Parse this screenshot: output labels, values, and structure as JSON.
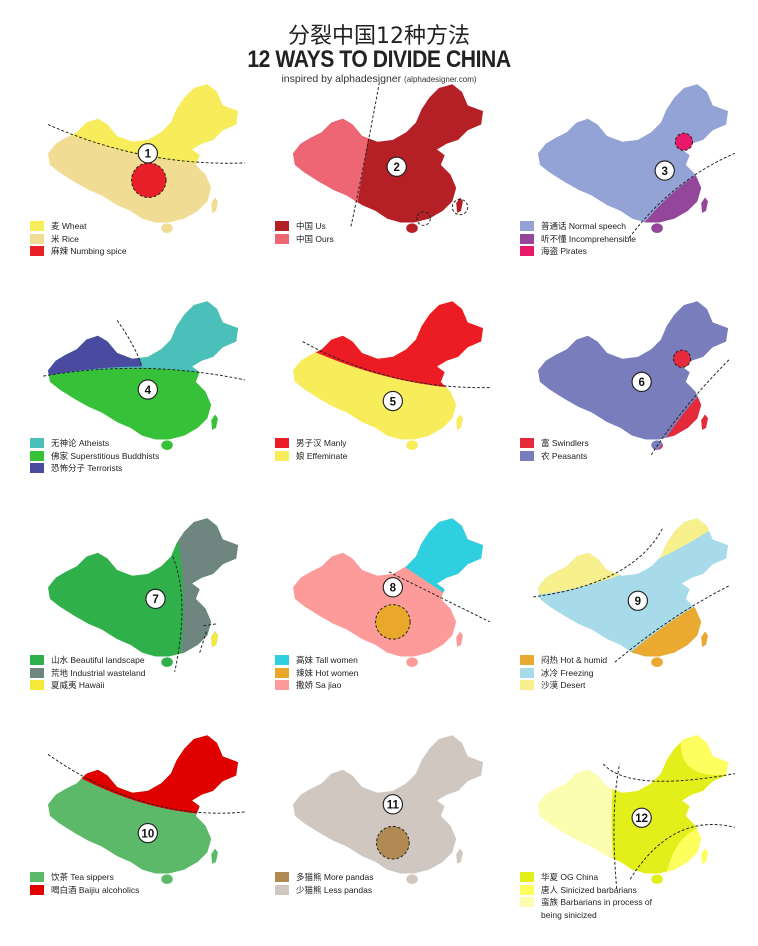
{
  "title_cn": "分裂中国12种方法",
  "title_en": "12 WAYS TO DIVIDE CHINA",
  "subtitle": "inspired by alphadesigner",
  "subtitle_small": "(alphadesigner.com)",
  "panels": [
    {
      "number": "1",
      "base": "#f0dc92",
      "legend": [
        {
          "label": "麦 Wheat",
          "color": "#f7ec5a"
        },
        {
          "label": "米 Rice",
          "color": "#f0dc92"
        },
        {
          "label": "麻辣 Numbing spice",
          "color": "#ea2028"
        }
      ]
    },
    {
      "number": "2",
      "base": "#b51f26",
      "legend": [
        {
          "label": "中国 Us",
          "color": "#b51f26"
        },
        {
          "label": "中国 Ours",
          "color": "#ee6574"
        }
      ]
    },
    {
      "number": "3",
      "base": "#94a3d5",
      "legend": [
        {
          "label": "普通话 Normal speech",
          "color": "#94a3d5"
        },
        {
          "label": "听不懂 Incomprehensible",
          "color": "#94479a"
        },
        {
          "label": "海盗 Pirates",
          "color": "#e8196a"
        }
      ]
    },
    {
      "number": "4",
      "base": "#36c139",
      "legend": [
        {
          "label": "无神论 Atheists",
          "color": "#4bbfba"
        },
        {
          "label": "佛家 Superstitious Buddhists",
          "color": "#36c139"
        },
        {
          "label": "恐怖分子 Terrorists",
          "color": "#4a4ba0"
        }
      ]
    },
    {
      "number": "5",
      "base": "#f7ec5a",
      "legend": [
        {
          "label": "男子汉 Manly",
          "color": "#ec1c24"
        },
        {
          "label": "娘 Effeminate",
          "color": "#f7ec5a"
        }
      ]
    },
    {
      "number": "6",
      "base": "#7a7dbb",
      "legend": [
        {
          "label": "富 Swindlers",
          "color": "#e52a3b"
        },
        {
          "label": "农 Peasants",
          "color": "#7a7dbb"
        }
      ]
    },
    {
      "number": "7",
      "base": "#30b04a",
      "legend": [
        {
          "label": "山水 Beautiful landscape",
          "color": "#30b04a"
        },
        {
          "label": "荒地 Industrial wasteland",
          "color": "#6f8580"
        },
        {
          "label": "夏威夷 Hawaii",
          "color": "#f5e93a"
        }
      ]
    },
    {
      "number": "8",
      "base": "#fd9b9b",
      "legend": [
        {
          "label": "高妹 Tall women",
          "color": "#2ed0e0"
        },
        {
          "label": "辣妹 Hot women",
          "color": "#e9a82a"
        },
        {
          "label": "撒娇 Sa jiao",
          "color": "#fd9b9b"
        }
      ]
    },
    {
      "number": "9",
      "base": "#a7dbe9",
      "legend": [
        {
          "label": "闷热 Hot & humid",
          "color": "#eaa930"
        },
        {
          "label": "冰冷 Freezing",
          "color": "#a7dbe9"
        },
        {
          "label": "沙漠 Desert",
          "color": "#f8ef8d"
        }
      ]
    },
    {
      "number": "10",
      "base": "#5db96a",
      "legend": [
        {
          "label": "饮茶 Tea sippers",
          "color": "#5db96a"
        },
        {
          "label": "喝白酒 Baijiu alcoholics",
          "color": "#e00000"
        }
      ]
    },
    {
      "number": "11",
      "base": "#d0c8c0",
      "legend": [
        {
          "label": "多猫熊 More pandas",
          "color": "#b08a52"
        },
        {
          "label": "少猫熊 Less pandas",
          "color": "#d0c8c0"
        }
      ]
    },
    {
      "number": "12",
      "base": "#e3ef1a",
      "legend": [
        {
          "label": "华夏 OG China",
          "color": "#e3ef1a"
        },
        {
          "label": "唐人 Sinicized barbarians",
          "color": "#fefe5f"
        },
        {
          "label": "蛮族 Barbarians in process of being sinicized",
          "color": "#fdfdb0"
        }
      ]
    }
  ]
}
